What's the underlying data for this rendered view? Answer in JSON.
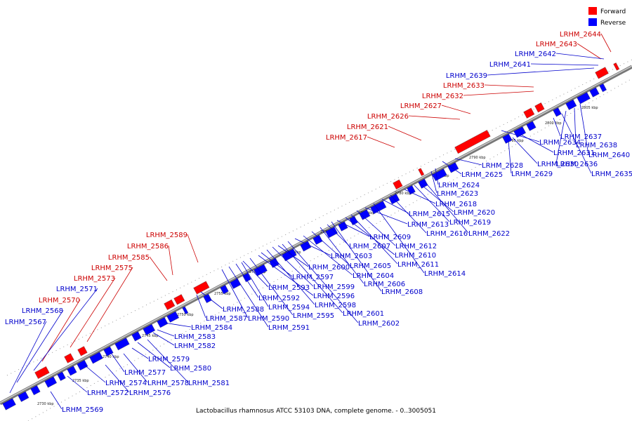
{
  "legend": {
    "forward": {
      "label": "Forward",
      "color": "#ff0000"
    },
    "reverse": {
      "label": "Reverse",
      "color": "#0000ff"
    }
  },
  "caption": "Lactobacillus rhamnosus ATCC 53103 DNA, complete genome. - 0..3005051",
  "ticks": [
    "2730 kbp",
    "2735 kbp",
    "2740 kbp",
    "2745 kbp",
    "2750 kbp",
    "2755 kbp",
    "2760 kbp",
    "2765 kbp",
    "2770 kbp",
    "2775 kbp",
    "2780 kbp",
    "2785 kbp",
    "2790 kbp",
    "2795 kbp",
    "2800 kbp",
    "2805 kbp"
  ],
  "forward_labels": [
    "LRHM_2644",
    "LRHM_2643",
    "LRHM_2633",
    "LRHM_2632",
    "LRHM_2627",
    "LRHM_2626",
    "LRHM_2621",
    "LRHM_2617",
    "LRHM_2589",
    "LRHM_2586",
    "LRHM_2585",
    "LRHM_2575",
    "LRHM_2573",
    "LRHM_2570"
  ],
  "reverse_labels_top": [
    "LRHM_2642",
    "LRHM_2641",
    "LRHM_2639",
    "LRHM_2571",
    "LRHM_2568",
    "LRHM_2567"
  ],
  "reverse_labels_bottom": [
    "LRHM_2569",
    "LRHM_2572",
    "LRHM_2574",
    "LRHM_2576",
    "LRHM_2577",
    "LRHM_2578",
    "LRHM_2579",
    "LRHM_2580",
    "LRHM_2581",
    "LRHM_2582",
    "LRHM_2583",
    "LRHM_2584",
    "LRHM_2587",
    "LRHM_2588",
    "LRHM_2590",
    "LRHM_2591",
    "LRHM_2592",
    "LRHM_2593",
    "LRHM_2594",
    "LRHM_2595",
    "LRHM_2596",
    "LRHM_2597",
    "LRHM_2598",
    "LRHM_2599",
    "LRHM_2600",
    "LRHM_2601",
    "LRHM_2602",
    "LRHM_2603",
    "LRHM_2604",
    "LRHM_2605",
    "LRHM_2606",
    "LRHM_2607",
    "LRHM_2608",
    "LRHM_2609",
    "LRHM_2610",
    "LRHM_2611",
    "LRHM_2612",
    "LRHM_2613",
    "LRHM_2614",
    "LRHM_2615",
    "LRHM_2616",
    "LRHM_2618",
    "LRHM_2619",
    "LRHM_2620",
    "LRHM_2622",
    "LRHM_2623",
    "LRHM_2624",
    "LRHM_2625",
    "LRHM_2628",
    "LRHM_2629",
    "LRHM_2630",
    "LRHM_2631",
    "LRHM_2634",
    "LRHM_2635",
    "LRHM_2636",
    "LRHM_2637",
    "LRHM_2638",
    "LRHM_2640"
  ]
}
